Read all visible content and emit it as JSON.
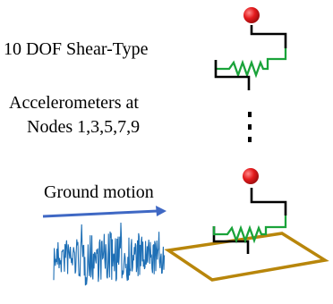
{
  "labels": {
    "model": "10 DOF Shear-Type",
    "accelerometers_line1": "Accelerometers at",
    "accelerometers_line2": "Nodes 1,3,5,7,9",
    "ground_motion": "Ground motion"
  },
  "colors": {
    "mass": "#e41a1c",
    "spring": "#1aa33a",
    "column": "#000000",
    "arrow": "#3f68c4",
    "base": "#b8860b",
    "signal": "#1e6fb5"
  },
  "ellipsis": "⋮"
}
